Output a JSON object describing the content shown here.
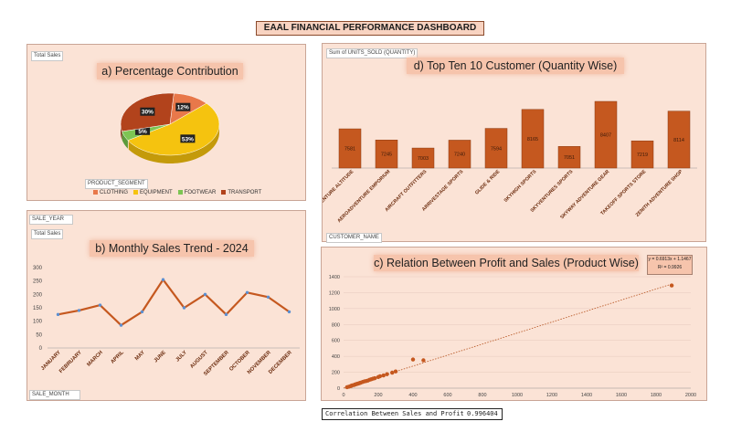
{
  "dashboard_title": "EAAL FINANCIAL PERFORMANCE DASHBOARD",
  "panel_a": {
    "title": "a) Percentage Contribution",
    "field": "Total Sales",
    "legend_title": "PRODUCT_SEGMENT"
  },
  "panel_b": {
    "title": "b) Monthly Sales Trend -  2024",
    "field_year": "SALE_YEAR",
    "field_total": "Total Sales",
    "field_month": "SALE_MONTH"
  },
  "panel_c": {
    "title": "c) Relation Between Profit and Sales (Product Wise)",
    "equation": "y = 0.6913x + 1.1467",
    "r2": "R² = 0.9926"
  },
  "panel_d": {
    "title": "d) Top Ten 10 Customer (Quantity Wise)",
    "field": "Sum of UNITS_SOLD (QUANTITY)",
    "field_customer": "CUSTOMER_NAME"
  },
  "correlation": {
    "label": "Correlation Between Sales and Profit",
    "value": "0.996404"
  },
  "colors": {
    "clothing": "#e8784a",
    "equipment": "#f5c30f",
    "footwear": "#7dc553",
    "transport": "#b2431c",
    "bar": "#c5581f",
    "line": "#c5581f",
    "marker": "#5b8fd1"
  },
  "chart_data": [
    {
      "type": "pie",
      "title": "a) Percentage Contribution",
      "categories": [
        "CLOTHING",
        "EQUIPMENT",
        "FOOTWEAR",
        "TRANSPORT"
      ],
      "values": [
        12,
        53,
        5,
        30
      ],
      "labels": [
        "12%",
        "53%",
        "5%",
        "30%"
      ],
      "legend_position": "bottom"
    },
    {
      "type": "line",
      "title": "b) Monthly Sales Trend -  2024",
      "categories": [
        "JANUARY",
        "FEBRUARY",
        "MARCH",
        "APRIL",
        "MAY",
        "JUNE",
        "JULY",
        "AUGUST",
        "SEPTEMBER",
        "OCTOBER",
        "NOVEMBER",
        "DECEMBER"
      ],
      "values": [
        125,
        140,
        160,
        85,
        135,
        255,
        150,
        200,
        125,
        207,
        190,
        135
      ],
      "ylim": [
        0,
        300
      ],
      "yticks": [
        "0",
        "50",
        "100",
        "150",
        "200",
        "250",
        "300"
      ]
    },
    {
      "type": "scatter",
      "title": "c) Relation Between Profit and Sales (Product Wise)",
      "x": [
        20,
        30,
        40,
        45,
        50,
        60,
        65,
        70,
        75,
        80,
        85,
        90,
        95,
        100,
        110,
        120,
        130,
        140,
        150,
        160,
        170,
        180,
        200,
        210,
        230,
        250,
        280,
        300,
        400,
        460,
        1890
      ],
      "y": [
        12,
        18,
        25,
        30,
        35,
        40,
        45,
        48,
        52,
        55,
        58,
        62,
        66,
        70,
        78,
        85,
        90,
        95,
        105,
        112,
        120,
        125,
        140,
        150,
        160,
        175,
        195,
        210,
        360,
        350,
        1290
      ],
      "trendline": {
        "slope": 0.6913,
        "intercept": 1.1467
      },
      "xlim": [
        0,
        2000
      ],
      "ylim": [
        0,
        1400
      ],
      "xticks": [
        "0",
        "200",
        "400",
        "600",
        "800",
        "1000",
        "1200",
        "1400",
        "1600",
        "1800",
        "2000"
      ],
      "yticks": [
        "0",
        "200",
        "400",
        "600",
        "800",
        "1000",
        "1200",
        "1400"
      ]
    },
    {
      "type": "bar",
      "title": "d) Top Ten 10 Customer (Quantity Wise)",
      "categories": [
        "ADVENTURE ALTITUDE",
        "AEROADVENTURE EMPORIUM",
        "AIRCRAFT OUTFITTERS",
        "ARRIVESTAGE SPORTS",
        "GLIDE & RIDE",
        "SKYHIGH SPORTS",
        "SKYVENTURES SPORTS",
        "SKYWAY ADVENTURE GEAR",
        "TAKEOFF SPORTS STORE",
        "ZENITH ADVENTURE SHOP"
      ],
      "values": [
        7581,
        7245,
        7003,
        7240,
        7594,
        8165,
        7051,
        8407,
        7219,
        8114
      ],
      "labels": [
        "7581",
        "7245",
        "7003",
        "7240",
        "7594",
        "8165",
        "7051",
        "8407",
        "7219",
        "8114"
      ]
    }
  ]
}
